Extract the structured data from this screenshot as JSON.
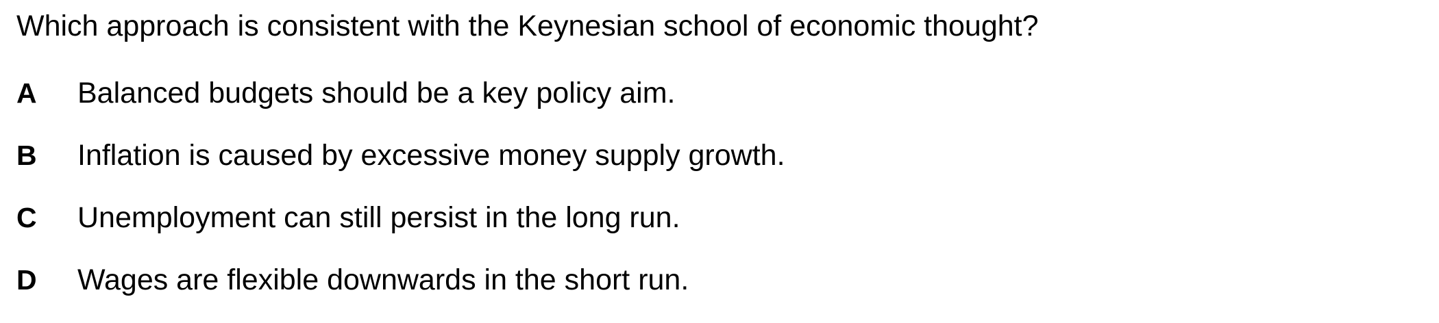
{
  "question": {
    "text": "Which approach is consistent with the Keynesian school of economic thought?"
  },
  "options": [
    {
      "letter": "A",
      "text": "Balanced budgets should be a key policy aim."
    },
    {
      "letter": "B",
      "text": "Inflation is caused by excessive money supply growth."
    },
    {
      "letter": "C",
      "text": "Unemployment can still persist in the long run."
    },
    {
      "letter": "D",
      "text": "Wages are flexible downwards in the short run."
    }
  ]
}
